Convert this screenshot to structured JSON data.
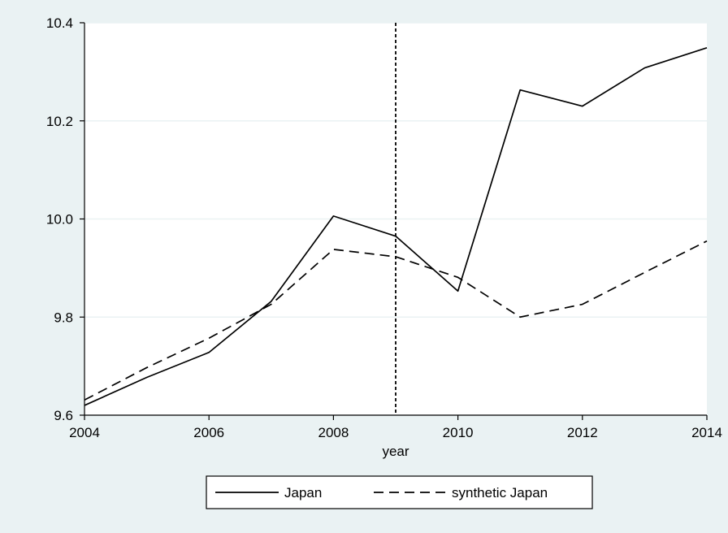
{
  "chart_data": {
    "type": "line",
    "title": "",
    "xlabel": "year",
    "ylabel": "",
    "xlim": [
      2004,
      2014
    ],
    "ylim": [
      9.6,
      10.4
    ],
    "x_ticks": [
      2004,
      2006,
      2008,
      2010,
      2012,
      2014
    ],
    "y_ticks": [
      9.6,
      9.8,
      10.0,
      10.2,
      10.4
    ],
    "y_tick_labels": [
      "9.6",
      "9.8",
      "10.0",
      "10.2",
      "10.4"
    ],
    "x": [
      2004,
      2005,
      2006,
      2007,
      2008,
      2009,
      2010,
      2011,
      2012,
      2013,
      2014
    ],
    "series": [
      {
        "name": "Japan",
        "style": "solid",
        "color": "#000000",
        "values": [
          9.62,
          9.677,
          9.728,
          9.832,
          10.006,
          9.965,
          9.853,
          10.263,
          10.23,
          10.308,
          10.349
        ]
      },
      {
        "name": "synthetic Japan",
        "style": "dashed",
        "color": "#000000",
        "values": [
          9.631,
          9.697,
          9.757,
          9.826,
          9.938,
          9.923,
          9.881,
          9.8,
          9.826,
          9.891,
          9.955
        ]
      }
    ],
    "vline_x": 2009,
    "grid": true,
    "legend_position": "bottom"
  },
  "colors": {
    "background": "#eaf2f3",
    "plot_background": "#ffffff",
    "grid": "#eaf2f3",
    "line": "#000000"
  }
}
